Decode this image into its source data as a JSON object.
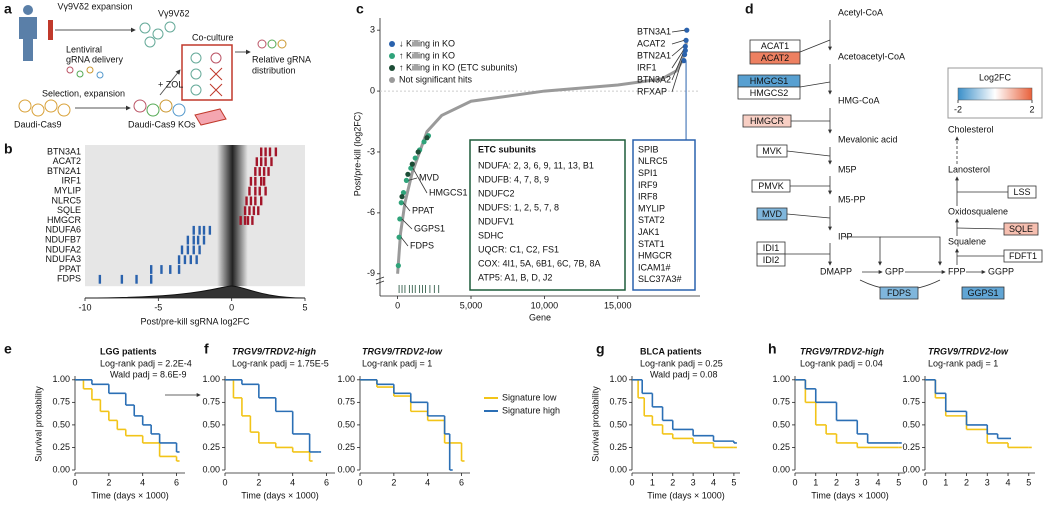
{
  "panel_labels": [
    "a",
    "b",
    "c",
    "d",
    "e",
    "f",
    "g",
    "h"
  ],
  "panel_a": {
    "texts": [
      "Vγ9Vδ2 expansion",
      "Vγ9Vδ2",
      "Lentiviral",
      "gRNA delivery",
      "Co-culture",
      "Relative gRNA",
      "distribution",
      "Selection, expansion",
      "+ ZOL",
      "Daudi-Cas9",
      "Daudi-Cas9 KOs"
    ]
  },
  "panel_d": {
    "metabolites": [
      "Acetyl-CoA",
      "Acetoacetyl-CoA",
      "HMG-CoA",
      "Mevalonic acid",
      "M5P",
      "M5-PP",
      "IPP",
      "DMAPP",
      "GPP",
      "FPP",
      "GGPP",
      "Cholesterol",
      "Lanosterol",
      "Oxidosqualene",
      "Squalene"
    ],
    "enzymes": [
      {
        "label": "ACAT1",
        "log2fc": 0
      },
      {
        "label": "ACAT2",
        "log2fc": 1.6
      },
      {
        "label": "HMGCS1",
        "log2fc": -1.7
      },
      {
        "label": "HMGCS2",
        "log2fc": 0
      },
      {
        "label": "HMGCR",
        "log2fc": 0.6
      },
      {
        "label": "MVK",
        "log2fc": 0
      },
      {
        "label": "PMVK",
        "log2fc": 0
      },
      {
        "label": "MVD",
        "log2fc": -1.3
      },
      {
        "label": "IDI1",
        "log2fc": 0
      },
      {
        "label": "IDI2",
        "log2fc": 0
      },
      {
        "label": "FDPS",
        "log2fc": -1.3
      },
      {
        "label": "GGPS1",
        "log2fc": -1.6
      },
      {
        "label": "LSS",
        "log2fc": 0
      },
      {
        "label": "SQLE",
        "log2fc": 0.8
      },
      {
        "label": "FDFT1",
        "log2fc": 0
      }
    ],
    "legend_title": "Log2FC",
    "scale_ticks": [
      -2,
      2
    ],
    "low_color": "#3a8fc9",
    "high_color": "#e8603a"
  },
  "chart_data": [
    {
      "type": "strip",
      "xlabel": "Post/pre-kill sgRNA log2FC",
      "xlim": [
        -10,
        5
      ],
      "xticks": [
        -10,
        -5,
        0,
        5
      ],
      "up_color": "#a3162a",
      "down_color": "#2a62ad",
      "categories": [
        "BTN3A1",
        "ACAT2",
        "BTN2A1",
        "IRF1",
        "MYLIP",
        "NLRC5",
        "SQLE",
        "HMGCR",
        "NDUFA6",
        "NDUFB7",
        "NDUFA2",
        "NDUFA3",
        "PPAT",
        "FDPS"
      ],
      "values": [
        [
          2.0,
          2.3,
          2.6,
          3.0
        ],
        [
          1.7,
          2.0,
          2.3,
          2.7
        ],
        [
          1.6,
          1.9,
          2.2,
          2.5
        ],
        [
          1.3,
          1.6,
          2.0,
          2.2
        ],
        [
          1.2,
          1.6,
          1.9,
          2.3
        ],
        [
          1.0,
          1.3,
          1.6,
          2.0
        ],
        [
          0.9,
          1.2,
          1.5,
          1.8
        ],
        [
          0.6,
          0.9,
          1.1,
          1.4
        ],
        [
          -2.6,
          -2.2,
          -1.9,
          -1.5
        ],
        [
          -3.0,
          -2.6,
          -2.3,
          -1.9
        ],
        [
          -3.4,
          -3.0,
          -2.6,
          -2.2
        ],
        [
          -3.6,
          -3.2,
          -2.8,
          -2.4
        ],
        [
          -5.5,
          -4.8,
          -4.2,
          -3.6
        ],
        [
          -9.0,
          -7.5,
          -6.5,
          -5.5
        ]
      ]
    },
    {
      "type": "scatter",
      "xlabel": "Gene",
      "ylabel": "Post/pre-kill (log2FC)",
      "xlim": [
        -1200,
        20600
      ],
      "ylim": [
        -9.8,
        3.6
      ],
      "xticks": [
        0,
        {
          "value": 5000,
          "label": "5,000"
        },
        {
          "value": 10000,
          "label": "10,000"
        },
        {
          "value": 15000,
          "label": "15,000"
        }
      ],
      "yticks": [
        3,
        0,
        -3,
        -6,
        -9
      ],
      "series": [
        {
          "name": "↓ Killing in KO",
          "color": "#2a62ad",
          "style": "points",
          "x": [
            19500,
            19550,
            19600,
            19600,
            19650,
            19700
          ],
          "values": [
            1.5,
            1.8,
            2.0,
            2.2,
            2.5,
            3.0
          ]
        },
        {
          "name": "↑ Killing in KO",
          "color": "#2fa37a",
          "style": "points",
          "x": [
            50,
            100,
            150,
            250,
            400,
            600,
            900,
            1200,
            1500,
            1800,
            2100
          ],
          "values": [
            -8.6,
            -7.2,
            -6.3,
            -5.5,
            -5.0,
            -4.4,
            -3.8,
            -3.3,
            -2.9,
            -2.5,
            -2.2
          ]
        },
        {
          "name": "↑ Killing in KO (ETC subunits)",
          "color": "#1d4d36",
          "style": "points",
          "x": [
            300,
            700,
            1000,
            1400,
            2000
          ],
          "values": [
            -5.2,
            -4.1,
            -3.6,
            -3.0,
            -2.3
          ]
        },
        {
          "name": "Not significant hits",
          "color": "#9a9a9a",
          "style": "line",
          "x": [
            0,
            200,
            500,
            1000,
            1500,
            2000,
            3000,
            5000,
            10000,
            15000,
            18000,
            19000,
            19400,
            19700
          ],
          "values": [
            -9,
            -7,
            -5.5,
            -4,
            -3,
            -2,
            -1.2,
            -0.5,
            0,
            0.3,
            0.6,
            1,
            1.5,
            2.5
          ]
        }
      ],
      "rug_x": [
        100,
        300,
        500,
        800,
        1000,
        1200,
        1500,
        1700,
        1900,
        2200,
        2500,
        2800
      ],
      "annotations_right": [
        "BTN3A1",
        "ACAT2",
        "BTN2A1",
        "IRF1",
        "BTN3A2",
        "RFXAP"
      ],
      "annotations_left": [
        "MVD",
        "HMGCS1",
        "PPAT",
        "GGPS1",
        "FDPS"
      ],
      "box_etc": {
        "title": "ETC subunits",
        "lines": [
          "NDUFA: 2, 3, 6, 9, 11, 13, B1",
          "NDUFB: 4, 7, 8, 9",
          "NDUFC2",
          "NDUFS: 1, 2, 5, 7, 8",
          "NDUFV1",
          "SDHC",
          "UQCR: C1, C2, FS1",
          "COX: 4I1, 5A, 6B1, 6C, 7B, 8A",
          "ATP5: A1, B, D, J2"
        ]
      },
      "box_right": [
        "SPIB",
        "NLRC5",
        "SPI1",
        "IRF9",
        "IRF8",
        "MYLIP",
        "STAT2",
        "JAK1",
        "STAT1",
        "HMGCR",
        "ICAM1#",
        "SLC37A3#"
      ]
    },
    {
      "type": "survival",
      "title": "LGG patients",
      "annotations": [
        "Log-rank padj = 2.2E-4",
        "Wald padj = 8.6E-9"
      ],
      "ylabel": "Survival probability",
      "xlabel": "Time (days × 1000)",
      "xlim": [
        0,
        6.5
      ],
      "xticks": [
        0,
        2,
        4,
        6
      ],
      "ylim": [
        0,
        1.02
      ],
      "yticks": [
        {
          "value": 0,
          "label": "0.00"
        },
        {
          "value": 0.25,
          "label": "0.25"
        },
        {
          "value": 0.5,
          "label": "0.50"
        },
        {
          "value": 0.75,
          "label": "0.75"
        },
        {
          "value": 1,
          "label": "1.00"
        }
      ],
      "series": [
        {
          "name": "Signature low",
          "color": "#f2c418",
          "x": [
            0,
            0.5,
            1,
            1.5,
            2,
            2.5,
            3,
            4,
            5,
            6
          ],
          "values": [
            1,
            0.9,
            0.78,
            0.65,
            0.55,
            0.45,
            0.38,
            0.3,
            0.15,
            0.1
          ]
        },
        {
          "name": "Signature high",
          "color": "#2b6fb5",
          "x": [
            0,
            1,
            2,
            3,
            3.5,
            4,
            4.5,
            5,
            6
          ],
          "values": [
            1,
            0.95,
            0.85,
            0.72,
            0.6,
            0.5,
            0.4,
            0.3,
            0.2
          ]
        }
      ]
    },
    {
      "type": "survival",
      "title": "TRGV9/TRDV2-high",
      "italic": true,
      "annotations": [
        "Log-rank padj = 1.75E-5"
      ],
      "xlabel": "Time (days × 1000)",
      "xlim": [
        0,
        6.5
      ],
      "xticks": [
        0,
        2,
        4,
        6
      ],
      "ylim": [
        0,
        1.02
      ],
      "yticks": [
        {
          "value": 0,
          "label": "0.00"
        },
        {
          "value": 0.25,
          "label": "0.25"
        },
        {
          "value": 0.5,
          "label": "0.50"
        },
        {
          "value": 0.75,
          "label": "0.75"
        },
        {
          "value": 1,
          "label": "1.00"
        }
      ],
      "series": [
        {
          "name": "Signature low",
          "color": "#f2c418",
          "x": [
            0,
            0.5,
            1,
            1.5,
            2,
            3,
            4,
            5
          ],
          "values": [
            1,
            0.8,
            0.6,
            0.42,
            0.3,
            0.25,
            0.2,
            0.1
          ]
        },
        {
          "name": "Signature high",
          "color": "#2b6fb5",
          "x": [
            0,
            1,
            2,
            3,
            4,
            5,
            5.5
          ],
          "values": [
            1,
            0.95,
            0.8,
            0.65,
            0.4,
            0.2,
            0.2
          ]
        }
      ]
    },
    {
      "type": "survival",
      "title": "TRGV9/TRDV2-low",
      "italic": true,
      "annotations": [
        "Log-rank padj = 1"
      ],
      "xlim": [
        0,
        6.5
      ],
      "xticks": [
        0,
        2,
        4,
        6
      ],
      "ylim": [
        0,
        1.02
      ],
      "legend": "right",
      "yticks": [
        {
          "value": 0,
          "label": "0.00"
        },
        {
          "value": 0.25,
          "label": "0.25"
        },
        {
          "value": 0.5,
          "label": "0.50"
        },
        {
          "value": 0.75,
          "label": "0.75"
        },
        {
          "value": 1,
          "label": "1.00"
        }
      ],
      "series": [
        {
          "name": "Signature low",
          "color": "#f2c418",
          "x": [
            0,
            1,
            2,
            3,
            4,
            5,
            6
          ],
          "values": [
            1,
            0.92,
            0.82,
            0.65,
            0.55,
            0.3,
            0.1
          ]
        },
        {
          "name": "Signature high",
          "color": "#2b6fb5",
          "x": [
            0,
            1,
            2,
            3,
            4,
            5,
            5.3
          ],
          "values": [
            1,
            0.95,
            0.85,
            0.75,
            0.6,
            0.4,
            0
          ]
        }
      ]
    },
    {
      "type": "survival",
      "title": "BLCA patients",
      "annotations": [
        "Log-rank padj = 0.25",
        "Wald padj = 0.08"
      ],
      "ylabel": "Survival probability",
      "xlabel": "Time (days × 1000)",
      "xlim": [
        0,
        5.3
      ],
      "xticks": [
        0,
        1,
        2,
        3,
        4,
        5
      ],
      "ylim": [
        0,
        1.02
      ],
      "yticks": [
        {
          "value": 0,
          "label": "0.00"
        },
        {
          "value": 0.25,
          "label": "0.25"
        },
        {
          "value": 0.5,
          "label": "0.50"
        },
        {
          "value": 0.75,
          "label": "0.75"
        },
        {
          "value": 1,
          "label": "1.00"
        }
      ],
      "series": [
        {
          "name": "Signature low",
          "color": "#f2c418",
          "x": [
            0,
            0.3,
            0.6,
            1,
            1.5,
            2,
            3,
            4,
            5
          ],
          "values": [
            1,
            0.8,
            0.6,
            0.5,
            0.4,
            0.35,
            0.3,
            0.25,
            0.25
          ]
        },
        {
          "name": "Signature high",
          "color": "#2b6fb5",
          "x": [
            0,
            0.5,
            1,
            1.5,
            2,
            3,
            4,
            5
          ],
          "values": [
            1,
            0.85,
            0.7,
            0.55,
            0.45,
            0.38,
            0.32,
            0.3
          ]
        }
      ]
    },
    {
      "type": "survival",
      "title": "TRGV9/TRDV2-high",
      "italic": true,
      "annotations": [
        "Log-rank padj = 0.04"
      ],
      "xlabel": "Time (days × 1000)",
      "xlim": [
        0,
        5.3
      ],
      "xticks": [
        0,
        1,
        2,
        3,
        4,
        5
      ],
      "ylim": [
        0,
        1.02
      ],
      "yticks": [
        {
          "value": 0,
          "label": "0.00"
        },
        {
          "value": 0.25,
          "label": "0.25"
        },
        {
          "value": 0.5,
          "label": "0.50"
        },
        {
          "value": 0.75,
          "label": "0.75"
        },
        {
          "value": 1,
          "label": "1.00"
        }
      ],
      "series": [
        {
          "name": "Signature low",
          "color": "#f2c418",
          "x": [
            0,
            0.5,
            1,
            1.5,
            2,
            3,
            4,
            5
          ],
          "values": [
            1,
            0.75,
            0.5,
            0.4,
            0.3,
            0.25,
            0.25,
            0.25
          ]
        },
        {
          "name": "Signature high",
          "color": "#2b6fb5",
          "x": [
            0,
            0.5,
            1,
            2,
            3,
            3.5,
            5
          ],
          "values": [
            1,
            0.9,
            0.75,
            0.55,
            0.4,
            0.3,
            0.3
          ]
        }
      ]
    },
    {
      "type": "survival",
      "title": "TRGV9/TRDV2-low",
      "italic": true,
      "annotations": [
        "Log-rank padj = 1"
      ],
      "xlim": [
        0,
        5.3
      ],
      "xticks": [
        0,
        1,
        2,
        3,
        4,
        5
      ],
      "ylim": [
        0,
        1.02
      ],
      "yticks": [
        {
          "value": 0,
          "label": "0.00"
        },
        {
          "value": 0.25,
          "label": "0.25"
        },
        {
          "value": 0.5,
          "label": "0.50"
        },
        {
          "value": 0.75,
          "label": "0.75"
        },
        {
          "value": 1,
          "label": "1.00"
        }
      ],
      "series": [
        {
          "name": "Signature low",
          "color": "#f2c418",
          "x": [
            0,
            0.5,
            1,
            2,
            3,
            4,
            5
          ],
          "values": [
            1,
            0.8,
            0.6,
            0.45,
            0.3,
            0.25,
            0.25
          ]
        },
        {
          "name": "Signature high",
          "color": "#2b6fb5",
          "x": [
            0,
            0.5,
            1,
            2,
            3,
            3.5,
            4
          ],
          "values": [
            1,
            0.85,
            0.65,
            0.5,
            0.4,
            0.35,
            0.35
          ]
        }
      ]
    }
  ]
}
